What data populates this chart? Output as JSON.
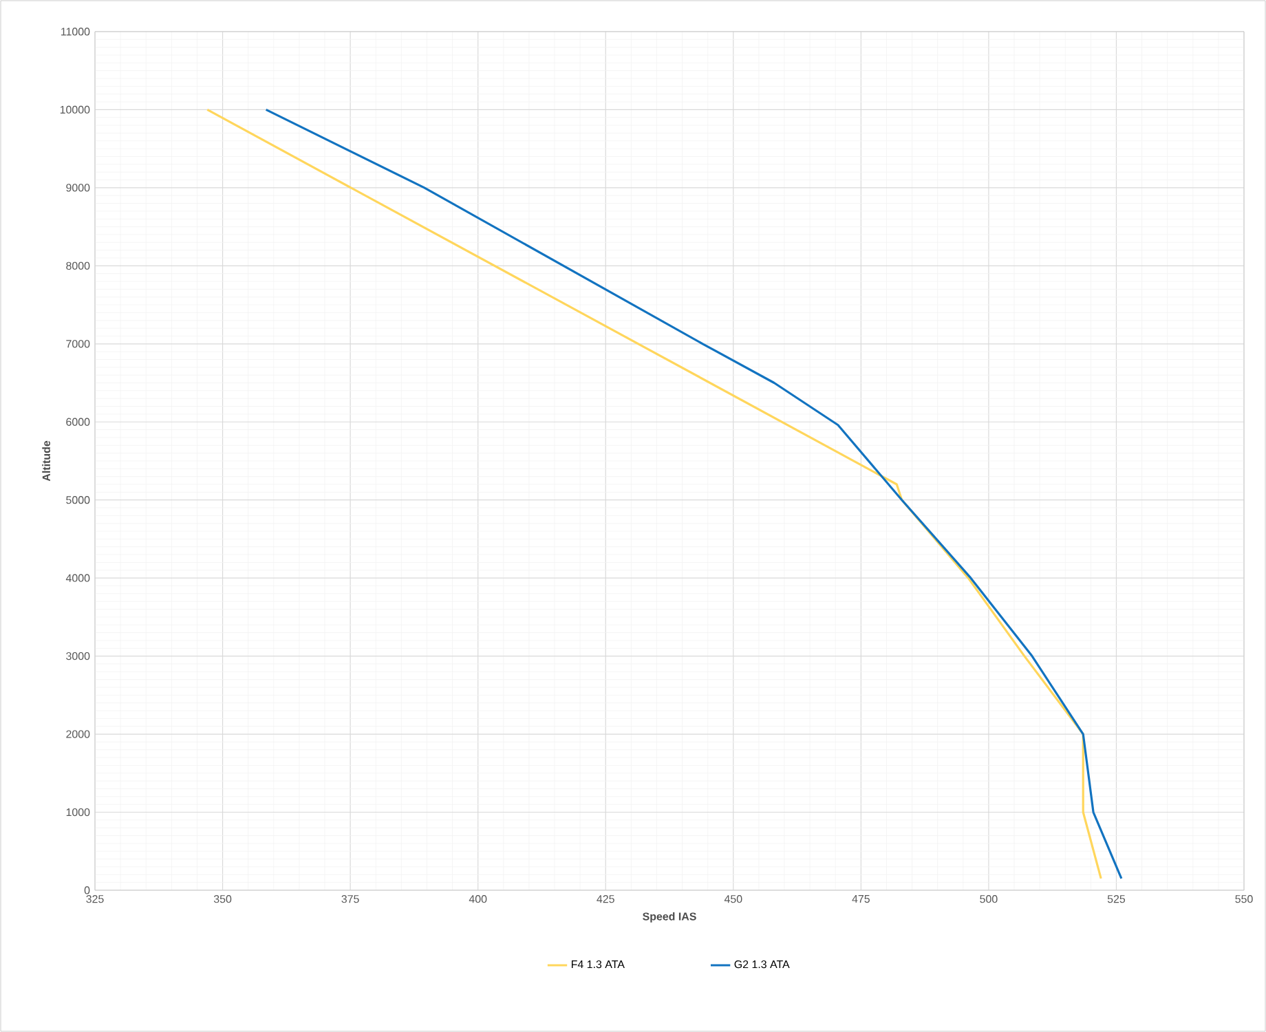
{
  "chart_data": {
    "type": "line",
    "xlabel": "Speed IAS",
    "ylabel": "Altitude",
    "xlim": [
      325,
      550
    ],
    "xticks": [
      325,
      350,
      375,
      400,
      425,
      450,
      475,
      500,
      525,
      550
    ],
    "ylim": [
      0,
      11000
    ],
    "yticks": [
      0,
      1000,
      2000,
      3000,
      4000,
      5000,
      6000,
      7000,
      8000,
      9000,
      10000,
      11000
    ],
    "grid": true,
    "legend": "bottom",
    "marker": "none",
    "line_style": "solid",
    "series": [
      {
        "name": "F4 1.3 ATA",
        "color": "#ffd65c",
        "x": [
          347,
          482,
          483,
          496,
          507,
          518.5,
          518.5,
          522
        ],
        "values": [
          10000,
          5200,
          5000,
          4000,
          3000,
          2000,
          1000,
          150
        ]
      },
      {
        "name": "G2 1.3 ATA",
        "color": "#1273c0",
        "x": [
          358.5,
          389.5,
          444,
          458,
          470.5,
          483,
          496.5,
          508.5,
          518.5,
          520.5,
          526
        ],
        "values": [
          10000,
          9000,
          7000,
          6500,
          5960,
          5000,
          4000,
          3000,
          2000,
          1000,
          150
        ]
      }
    ]
  }
}
